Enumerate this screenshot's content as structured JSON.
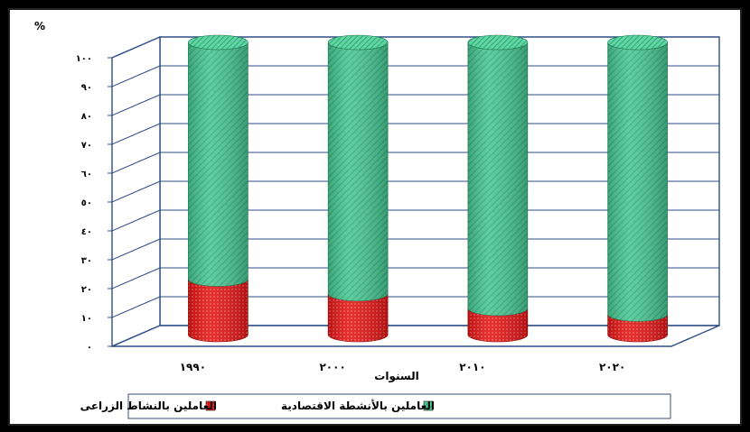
{
  "chart_data": {
    "type": "bar",
    "title": "",
    "unit_label": "%",
    "xlabel": "السنوات",
    "ylabel": "%",
    "ylim": [
      0,
      100
    ],
    "y_tick_labels": [
      "٠",
      "١٠",
      "٢٠",
      "٣٠",
      "٤٠",
      "٥٠",
      "٦٠",
      "٧٠",
      "٨٠",
      "٩٠",
      "١٠٠"
    ],
    "categories": [
      "١٩٩٠",
      "٢٠٠٠",
      "٢٠١٠",
      "٢٠٢٠"
    ],
    "stacked": true,
    "style": "3d-cylinder",
    "grid": true,
    "legend_position": "bottom",
    "series": [
      {
        "name": "العاملين بالنشاط الزراعى",
        "values": [
          19,
          14,
          9,
          7
        ],
        "color": "#e01010"
      },
      {
        "name": "العاملين بالأنشطة الاقتصادية",
        "values": [
          81,
          86,
          91,
          93
        ],
        "color": "#3fbf8a"
      }
    ]
  }
}
